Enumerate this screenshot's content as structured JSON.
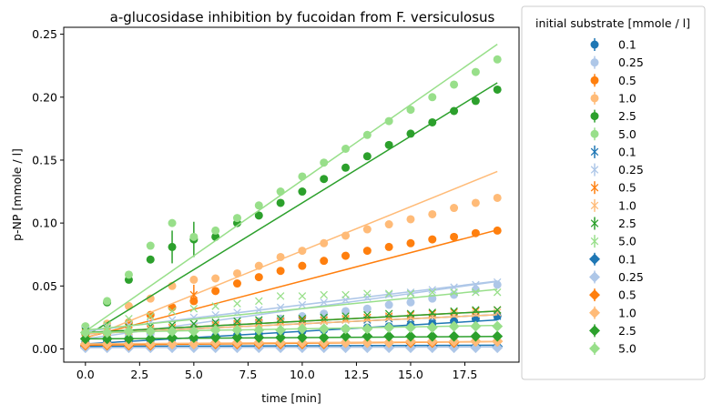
{
  "chart_data": {
    "type": "scatter",
    "title": "a-glucosidase inhibition by fucoidan from F. versiculosus",
    "xlabel": "time [min]",
    "ylabel": "p-NP [mmole / l]",
    "xlim": [
      -1,
      20
    ],
    "ylim": [
      -0.0105,
      0.2555
    ],
    "xticks": [
      0,
      2.5,
      5,
      7.5,
      10,
      12.5,
      15,
      17.5
    ],
    "xtick_labels": [
      "0.0",
      "2.5",
      "5.0",
      "7.5",
      "10.0",
      "12.5",
      "15.0",
      "17.5"
    ],
    "yticks": [
      0,
      0.05,
      0.1,
      0.15,
      0.2,
      0.25
    ],
    "ytick_labels": [
      "0.00",
      "0.05",
      "0.10",
      "0.15",
      "0.20",
      "0.25"
    ],
    "grid": false,
    "legend": {
      "title": "initial substrate [mmole / l]",
      "placement": "outside-right"
    },
    "x": [
      0,
      1,
      2,
      3,
      4,
      5,
      6,
      7,
      8,
      9,
      10,
      11,
      12,
      13,
      14,
      15,
      16,
      17,
      18,
      19
    ],
    "series": [
      {
        "name": "0.1",
        "marker": "circle",
        "color": "#1f77b4",
        "fit": [
          0.004,
          0.001
        ],
        "values": [
          0.005,
          0.006,
          0.006,
          0.007,
          0.008,
          0.008,
          0.01,
          0.011,
          0.012,
          0.013,
          0.014,
          0.015,
          0.016,
          0.017,
          0.018,
          0.019,
          0.02,
          0.022,
          0.024,
          0.026
        ]
      },
      {
        "name": "0.25",
        "marker": "circle",
        "color": "#aec7e8",
        "fit": [
          0.008,
          0.0024
        ],
        "values": [
          0.008,
          0.009,
          0.01,
          0.012,
          0.014,
          0.016,
          0.018,
          0.02,
          0.022,
          0.024,
          0.026,
          0.028,
          0.03,
          0.032,
          0.035,
          0.037,
          0.04,
          0.043,
          0.047,
          0.051
        ]
      },
      {
        "name": "0.5",
        "marker": "circle",
        "color": "#ff7f0e",
        "fit": [
          0.009,
          0.0045
        ],
        "values": [
          0.008,
          0.012,
          0.021,
          0.027,
          0.033,
          0.038,
          0.046,
          0.052,
          0.057,
          0.062,
          0.066,
          0.07,
          0.074,
          0.078,
          0.081,
          0.084,
          0.087,
          0.089,
          0.092,
          0.094
        ]
      },
      {
        "name": "1.0",
        "marker": "circle",
        "color": "#ffbb78",
        "fit": [
          0.008,
          0.007
        ],
        "values": [
          0.012,
          0.02,
          0.034,
          0.04,
          0.05,
          0.055,
          0.056,
          0.06,
          0.066,
          0.073,
          0.078,
          0.084,
          0.09,
          0.095,
          0.099,
          0.103,
          0.107,
          0.112,
          0.116,
          0.12
        ]
      },
      {
        "name": "2.5",
        "marker": "circle",
        "color": "#2ca02c",
        "fit": [
          0.01,
          0.0106
        ],
        "values": [
          0.012,
          0.037,
          0.055,
          0.071,
          0.081,
          0.087,
          0.089,
          0.1,
          0.106,
          0.116,
          0.125,
          0.135,
          0.144,
          0.153,
          0.162,
          0.171,
          0.18,
          0.189,
          0.197,
          0.206
        ],
        "errors": [
          0,
          0,
          0,
          0,
          0.013,
          0.014,
          0,
          0,
          0,
          0,
          0,
          0,
          0,
          0,
          0,
          0,
          0,
          0,
          0,
          0
        ]
      },
      {
        "name": "5.0",
        "marker": "circle",
        "color": "#98df8a",
        "fit": [
          0.014,
          0.012
        ],
        "values": [
          0.018,
          0.038,
          0.059,
          0.082,
          0.1,
          0.089,
          0.094,
          0.104,
          0.114,
          0.125,
          0.137,
          0.148,
          0.159,
          0.17,
          0.181,
          0.19,
          0.2,
          0.21,
          0.22,
          0.23
        ]
      },
      {
        "name": "0.1",
        "marker": "x",
        "color": "#1f77b4",
        "fit": [
          0.012,
          0.0008
        ],
        "values": [
          0.012,
          0.013,
          0.014,
          0.015,
          0.016,
          0.017,
          0.018,
          0.019,
          0.02,
          0.021,
          0.022,
          0.022,
          0.023,
          0.023,
          0.024,
          0.024,
          0.025,
          0.025,
          0.026,
          0.026
        ]
      },
      {
        "name": "0.25",
        "marker": "x",
        "color": "#aec7e8",
        "fit": [
          0.014,
          0.0021
        ],
        "values": [
          0.015,
          0.017,
          0.019,
          0.021,
          0.023,
          0.025,
          0.027,
          0.029,
          0.031,
          0.033,
          0.035,
          0.037,
          0.039,
          0.041,
          0.043,
          0.045,
          0.047,
          0.049,
          0.051,
          0.053
        ]
      },
      {
        "name": "0.5",
        "marker": "x",
        "color": "#ff7f0e",
        "fit": [
          0.013,
          0.0009
        ],
        "values": [
          0.013,
          0.014,
          0.015,
          0.016,
          0.017,
          0.043,
          0.019,
          0.02,
          0.021,
          0.022,
          0.023,
          0.023,
          0.024,
          0.025,
          0.026,
          0.027,
          0.028,
          0.029,
          0.03,
          0.031
        ],
        "errors": [
          0,
          0,
          0,
          0,
          0,
          0.008,
          0,
          0,
          0,
          0,
          0,
          0,
          0,
          0,
          0,
          0,
          0,
          0,
          0,
          0
        ]
      },
      {
        "name": "1.0",
        "marker": "x",
        "color": "#ffbb78",
        "fit": [
          0.012,
          0.0008
        ],
        "values": [
          0.012,
          0.013,
          0.014,
          0.015,
          0.016,
          0.017,
          0.018,
          0.019,
          0.02,
          0.021,
          0.021,
          0.022,
          0.023,
          0.024,
          0.025,
          0.025,
          0.026,
          0.027,
          0.028,
          0.029
        ]
      },
      {
        "name": "2.5",
        "marker": "x",
        "color": "#2ca02c",
        "fit": [
          0.013,
          0.0009
        ],
        "values": [
          0.014,
          0.016,
          0.017,
          0.018,
          0.019,
          0.02,
          0.021,
          0.022,
          0.023,
          0.024,
          0.024,
          0.025,
          0.026,
          0.027,
          0.028,
          0.028,
          0.029,
          0.03,
          0.031,
          0.031
        ]
      },
      {
        "name": "5.0",
        "marker": "x",
        "color": "#98df8a",
        "fit": [
          0.015,
          0.0017
        ],
        "values": [
          0.016,
          0.019,
          0.024,
          0.026,
          0.03,
          0.032,
          0.034,
          0.036,
          0.038,
          0.042,
          0.042,
          0.043,
          0.043,
          0.044,
          0.044,
          0.044,
          0.045,
          0.045,
          0.045,
          0.045
        ]
      },
      {
        "name": "0.1",
        "marker": "diamond",
        "color": "#1f77b4",
        "fit": [
          0.002,
          5e-05
        ],
        "values": [
          0.002,
          0.002,
          0.002,
          0.002,
          0.002,
          0.002,
          0.002,
          0.002,
          0.002,
          0.002,
          0.002,
          0.002,
          0.002,
          0.002,
          0.002,
          0.002,
          0.002,
          0.002,
          0.002,
          0.002
        ]
      },
      {
        "name": "0.25",
        "marker": "diamond",
        "color": "#aec7e8",
        "fit": [
          0.001,
          3e-05
        ],
        "values": [
          0.001,
          0.001,
          0.001,
          0.001,
          0.001,
          0.001,
          0.001,
          0.001,
          0.001,
          0.001,
          0.001,
          0.001,
          0.001,
          0.001,
          0.001,
          0.001,
          0.001,
          0.001,
          0.001,
          0.001
        ]
      },
      {
        "name": "0.5",
        "marker": "diamond",
        "color": "#ff7f0e",
        "fit": [
          0.003,
          0.00015
        ],
        "values": [
          0.003,
          0.003,
          0.003,
          0.003,
          0.004,
          0.004,
          0.004,
          0.004,
          0.004,
          0.004,
          0.004,
          0.004,
          0.005,
          0.005,
          0.005,
          0.005,
          0.005,
          0.005,
          0.006,
          0.006
        ]
      },
      {
        "name": "1.0",
        "marker": "diamond",
        "color": "#ffbb78",
        "fit": [
          0.004,
          0.0001
        ],
        "values": [
          0.004,
          0.004,
          0.004,
          0.004,
          0.004,
          0.004,
          0.005,
          0.005,
          0.005,
          0.005,
          0.005,
          0.005,
          0.005,
          0.005,
          0.005,
          0.006,
          0.006,
          0.006,
          0.006,
          0.006
        ]
      },
      {
        "name": "2.5",
        "marker": "diamond",
        "color": "#2ca02c",
        "fit": [
          0.008,
          0.0001
        ],
        "values": [
          0.008,
          0.008,
          0.008,
          0.008,
          0.009,
          0.009,
          0.009,
          0.009,
          0.009,
          0.009,
          0.009,
          0.009,
          0.01,
          0.01,
          0.01,
          0.01,
          0.01,
          0.01,
          0.01,
          0.01
        ]
      },
      {
        "name": "5.0",
        "marker": "diamond",
        "color": "#98df8a",
        "fit": [
          0.013,
          0.0003
        ],
        "values": [
          0.013,
          0.013,
          0.014,
          0.014,
          0.014,
          0.014,
          0.015,
          0.015,
          0.015,
          0.015,
          0.016,
          0.016,
          0.016,
          0.016,
          0.017,
          0.017,
          0.017,
          0.018,
          0.018,
          0.018
        ]
      }
    ]
  }
}
